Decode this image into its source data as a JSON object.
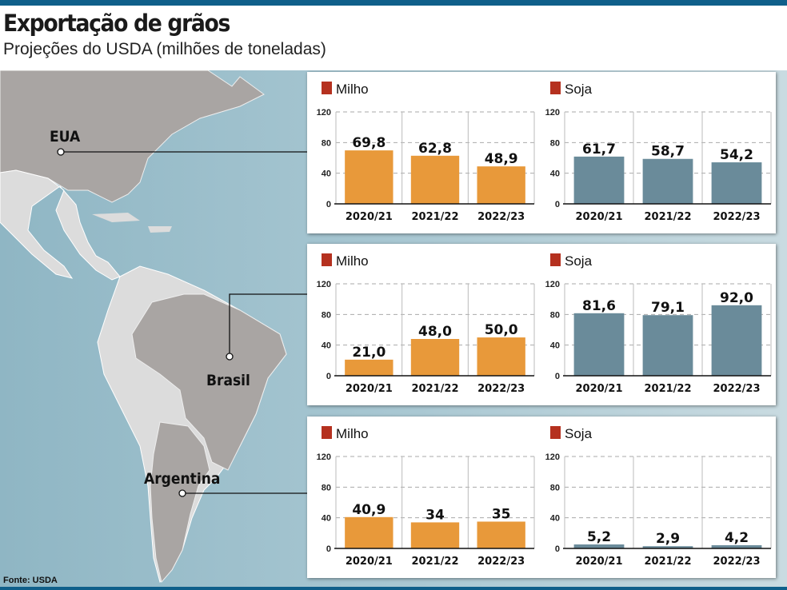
{
  "title": "Exportação de grãos",
  "subtitle": "Projeções do USDA (milhões de toneladas)",
  "source": "Fonte: USDA",
  "colors": {
    "milho": "#e8993a",
    "soja": "#6a8b9a",
    "legend_square": "#b5311f",
    "bar_top_rule": "#0f5f8a"
  },
  "chart_data": [
    {
      "country": "EUA",
      "charts": [
        {
          "type": "bar",
          "legend": "Milho",
          "color": "#e8993a",
          "categories": [
            "2020/21",
            "2021/22",
            "2022/23"
          ],
          "values": [
            69.8,
            62.8,
            48.9
          ],
          "labels": [
            "69,8",
            "62,8",
            "48,9"
          ],
          "yticks": [
            "0",
            "40",
            "80",
            "120"
          ],
          "ylim": [
            0,
            120
          ],
          "grid": true
        },
        {
          "type": "bar",
          "legend": "Soja",
          "color": "#6a8b9a",
          "categories": [
            "2020/21",
            "2021/22",
            "2022/23"
          ],
          "values": [
            61.7,
            58.7,
            54.2
          ],
          "labels": [
            "61,7",
            "58,7",
            "54,2"
          ],
          "yticks": [
            "0",
            "40",
            "80",
            "120"
          ],
          "ylim": [
            0,
            120
          ],
          "grid": true
        }
      ]
    },
    {
      "country": "Brasil",
      "charts": [
        {
          "type": "bar",
          "legend": "Milho",
          "color": "#e8993a",
          "categories": [
            "2020/21",
            "2021/22",
            "2022/23"
          ],
          "values": [
            21.0,
            48.0,
            50.0
          ],
          "labels": [
            "21,0",
            "48,0",
            "50,0"
          ],
          "yticks": [
            "0",
            "40",
            "80",
            "120"
          ],
          "ylim": [
            0,
            120
          ],
          "grid": true
        },
        {
          "type": "bar",
          "legend": "Soja",
          "color": "#6a8b9a",
          "categories": [
            "2020/21",
            "2021/22",
            "2022/23"
          ],
          "values": [
            81.6,
            79.1,
            92.0
          ],
          "labels": [
            "81,6",
            "79,1",
            "92,0"
          ],
          "yticks": [
            "0",
            "40",
            "80",
            "120"
          ],
          "ylim": [
            0,
            120
          ],
          "grid": true
        }
      ]
    },
    {
      "country": "Argentina",
      "charts": [
        {
          "type": "bar",
          "legend": "Milho",
          "color": "#e8993a",
          "categories": [
            "2020/21",
            "2021/22",
            "2022/23"
          ],
          "values": [
            40.9,
            34,
            35
          ],
          "labels": [
            "40,9",
            "34",
            "35"
          ],
          "yticks": [
            "0",
            "40",
            "80",
            "120"
          ],
          "ylim": [
            0,
            120
          ],
          "grid": true
        },
        {
          "type": "bar",
          "legend": "Soja",
          "color": "#6a8b9a",
          "categories": [
            "2020/21",
            "2021/22",
            "2022/23"
          ],
          "values": [
            5.2,
            2.9,
            4.2
          ],
          "labels": [
            "5,2",
            "2,9",
            "4,2"
          ],
          "yticks": [
            "0",
            "40",
            "80",
            "120"
          ],
          "ylim": [
            0,
            120
          ],
          "grid": true
        }
      ]
    }
  ]
}
